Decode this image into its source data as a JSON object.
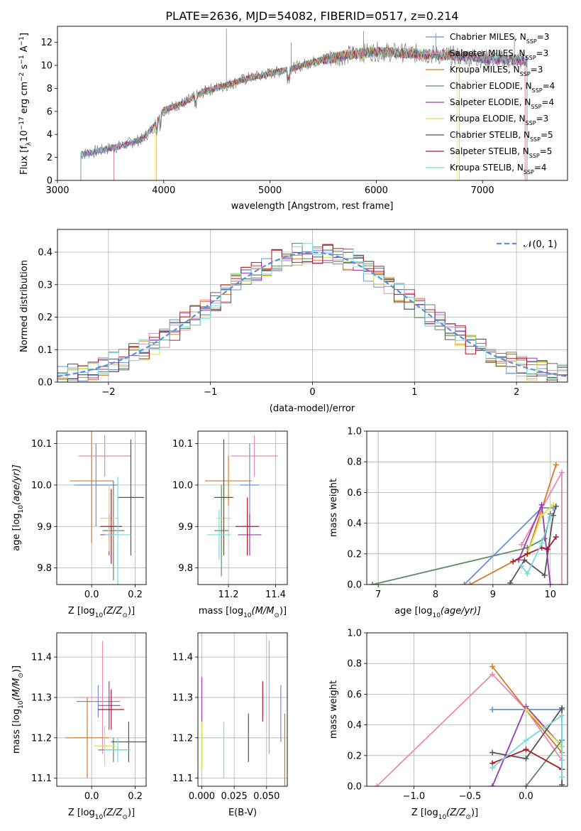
{
  "figure": {
    "title": "PLATE=2636, MJD=54082, FIBERID=0517, z=0.214"
  },
  "colors": {
    "chabrier_miles": "#6b8fd6",
    "salpeter_miles": "#e88ab6",
    "kroupa_miles": "#d57a2a",
    "chabrier_elodie": "#5f8a62",
    "salpeter_elodie": "#9a3ab0",
    "kroupa_elodie": "#d8e24a",
    "chabrier_stelib": "#555555",
    "salpeter_stelib": "#b0182a",
    "kroupa_stelib": "#7ad8de",
    "gaussian": "#5b8fd9"
  },
  "legend_spectrum": [
    {
      "label": "Chabrier MILES, N",
      "sub": "SSP",
      "tail": "=3",
      "color_key": "chabrier_miles"
    },
    {
      "label": "Salpeter MILES, N",
      "sub": "SSP",
      "tail": "=3",
      "color_key": "salpeter_miles"
    },
    {
      "label": "Kroupa MILES, N",
      "sub": "SSP",
      "tail": "=3",
      "color_key": "kroupa_miles"
    },
    {
      "label": "Chabrier ELODIE, N",
      "sub": "SSP",
      "tail": "=4",
      "color_key": "chabrier_elodie"
    },
    {
      "label": "Salpeter ELODIE, N",
      "sub": "SSP",
      "tail": "=4",
      "color_key": "salpeter_elodie"
    },
    {
      "label": "Kroupa ELODIE, N",
      "sub": "SSP",
      "tail": "=3",
      "color_key": "kroupa_elodie"
    },
    {
      "label": "Chabrier STELIB, N",
      "sub": "SSP",
      "tail": "=5",
      "color_key": "chabrier_stelib"
    },
    {
      "label": "Salpeter STELIB, N",
      "sub": "SSP",
      "tail": "=5",
      "color_key": "salpeter_stelib"
    },
    {
      "label": "Kroupa STELIB, N",
      "sub": "SSP",
      "tail": "=4",
      "color_key": "kroupa_stelib"
    }
  ],
  "legend_hist": {
    "label": "𝒩(0, 1)"
  },
  "chart_data": [
    {
      "id": "spectrum",
      "type": "line",
      "xlabel": "wavelength [Angstrom, rest frame]",
      "ylabel": "Flux [f",
      "ylabel_parts": [
        "Flux [f",
        "λ",
        "10",
        "−17",
        " erg cm",
        "−2",
        " s",
        "−1",
        " A",
        "−1",
        "]"
      ],
      "xlim": [
        3000,
        7800
      ],
      "ylim": [
        0,
        13.4
      ],
      "xticks": [
        3000,
        4000,
        5000,
        6000,
        7000
      ],
      "xtick_labels": [
        "3000",
        "4000",
        "5000",
        "6000",
        "7000"
      ],
      "yticks": [
        0,
        2,
        4,
        6,
        8,
        10,
        12
      ],
      "ytick_labels": [
        "0",
        "2",
        "4",
        "6",
        "8",
        "10",
        "12"
      ],
      "grid": false,
      "continuum": {
        "x": [
          3200,
          3400,
          3600,
          3800,
          3900,
          4000,
          4200,
          4400,
          4600,
          4800,
          5000,
          5200,
          5400,
          5600,
          5800,
          6000,
          6200,
          6400,
          6600,
          6800,
          7000,
          7200,
          7400
        ],
        "y": [
          2.2,
          2.6,
          3.0,
          3.6,
          4.6,
          6.1,
          6.8,
          7.8,
          8.3,
          8.9,
          9.3,
          9.7,
          10.3,
          10.7,
          11.0,
          11.2,
          11.1,
          11.0,
          10.9,
          10.8,
          10.6,
          10.5,
          10.4
        ]
      },
      "model_starts": [
        {
          "series": "data",
          "x_start": 3220
        },
        {
          "series": "salpeter_stelib",
          "x_start": 3530
        },
        {
          "series": "kroupa_miles",
          "x_start": 3930
        },
        {
          "series": "kroupa_elodie",
          "x_start": 3920
        }
      ],
      "model_ends": [
        {
          "series": "kroupa_miles",
          "x_end": 6780
        },
        {
          "series": "salpeter_stelib",
          "x_end": 7400
        },
        {
          "series": "kroupa_elodie",
          "x_end": 6760
        }
      ],
      "legend_position": "right"
    },
    {
      "id": "residual_hist",
      "type": "bar",
      "xlabel": "(data-model)/error",
      "ylabel": "Normed distribution",
      "xlim": [
        -2.5,
        2.5
      ],
      "ylim": [
        0,
        0.47
      ],
      "xticks": [
        -2,
        -1,
        0,
        1,
        2
      ],
      "xtick_labels": [
        "−2",
        "−1",
        "0",
        "1",
        "2"
      ],
      "yticks": [
        0.0,
        0.1,
        0.2,
        0.3,
        0.4
      ],
      "ytick_labels": [
        "0.0",
        "0.1",
        "0.2",
        "0.3",
        "0.4"
      ],
      "grid": true,
      "bin_width": 0.1,
      "gaussian": {
        "mean": 0,
        "sigma": 1
      },
      "legend_position": "top-right"
    },
    {
      "id": "age_vs_Z",
      "type": "scatter",
      "xlabel_parts": [
        "Z [log",
        "10",
        "(Z/Z",
        "⊙",
        ")]"
      ],
      "ylabel_parts": [
        "age  [log",
        "10",
        "(age/yr)]"
      ],
      "xlim": [
        -0.16,
        0.25
      ],
      "ylim": [
        9.76,
        10.13
      ],
      "xticks": [
        0.0,
        0.2
      ],
      "xtick_labels": [
        "0.0",
        "0.2"
      ],
      "yticks": [
        9.8,
        9.9,
        10.0,
        10.1
      ],
      "ytick_labels": [
        "9.8",
        "9.9",
        "10.0",
        "10.1"
      ],
      "grid": true,
      "points": [
        {
          "s": "chabrier_miles",
          "x": 0.02,
          "xerr": 0.1,
          "y": 10.0,
          "yerr": 0.1
        },
        {
          "s": "salpeter_miles",
          "x": 0.06,
          "xerr": 0.12,
          "y": 10.07,
          "yerr": 0.05
        },
        {
          "s": "kroupa_miles",
          "x": 0.0,
          "xerr": 0.1,
          "y": 10.01,
          "yerr": 0.15
        },
        {
          "s": "chabrier_elodie",
          "x": 0.1,
          "xerr": 0.05,
          "y": 9.89,
          "yerr": 0.12
        },
        {
          "s": "salpeter_elodie",
          "x": 0.08,
          "xerr": 0.04,
          "y": 9.88,
          "yerr": 0.05
        },
        {
          "s": "kroupa_elodie",
          "x": 0.08,
          "xerr": 0.04,
          "y": 9.92,
          "yerr": 0.08
        },
        {
          "s": "chabrier_stelib",
          "x": 0.18,
          "xerr": 0.06,
          "y": 9.97,
          "yerr": 0.14
        },
        {
          "s": "salpeter_stelib",
          "x": 0.09,
          "xerr": 0.05,
          "y": 9.9,
          "yerr": 0.09
        },
        {
          "s": "kroupa_stelib",
          "x": 0.12,
          "xerr": 0.06,
          "y": 9.88,
          "yerr": 0.14
        }
      ]
    },
    {
      "id": "age_vs_mass",
      "type": "scatter",
      "xlabel_parts": [
        "mass [log",
        "10",
        "(M/M",
        "⊙",
        ")]"
      ],
      "ylabel_parts": [],
      "xlim": [
        11.07,
        11.45
      ],
      "ylim": [
        9.76,
        10.13
      ],
      "xticks": [
        11.2,
        11.4
      ],
      "xtick_labels": [
        "11.2",
        "11.4"
      ],
      "yticks": [
        9.8,
        9.9,
        10.0,
        10.1
      ],
      "ytick_labels": [
        "9.8",
        "9.9",
        "10.0",
        "10.1"
      ],
      "grid": true,
      "points": [
        {
          "s": "chabrier_miles",
          "x": 11.29,
          "xerr": 0.04,
          "y": 10.0,
          "yerr": 0.1
        },
        {
          "s": "salpeter_miles",
          "x": 11.31,
          "xerr": 0.1,
          "y": 10.07,
          "yerr": 0.05
        },
        {
          "s": "kroupa_miles",
          "x": 11.2,
          "xerr": 0.1,
          "y": 10.01,
          "yerr": 0.06
        },
        {
          "s": "chabrier_elodie",
          "x": 11.17,
          "xerr": 0.03,
          "y": 9.89,
          "yerr": 0.11
        },
        {
          "s": "salpeter_elodie",
          "x": 11.29,
          "xerr": 0.05,
          "y": 9.88,
          "yerr": 0.05
        },
        {
          "s": "kroupa_elodie",
          "x": 11.18,
          "xerr": 0.03,
          "y": 9.92,
          "yerr": 0.08
        },
        {
          "s": "chabrier_stelib",
          "x": 11.18,
          "xerr": 0.04,
          "y": 9.97,
          "yerr": 0.14
        },
        {
          "s": "salpeter_stelib",
          "x": 11.28,
          "xerr": 0.05,
          "y": 9.9,
          "yerr": 0.07
        },
        {
          "s": "kroupa_stelib",
          "x": 11.16,
          "xerr": 0.05,
          "y": 9.88,
          "yerr": 0.06
        }
      ]
    },
    {
      "id": "weight_vs_age",
      "type": "line",
      "xlabel_parts": [
        "age  [log",
        "10",
        "(age/yr)]"
      ],
      "ylabel": "mass weight",
      "xlim": [
        6.8,
        10.3
      ],
      "ylim": [
        0,
        1.0
      ],
      "xticks": [
        7,
        8,
        9,
        10
      ],
      "xtick_labels": [
        "7",
        "8",
        "9",
        "10"
      ],
      "yticks": [
        0.0,
        0.2,
        0.4,
        0.6,
        0.8,
        1.0
      ],
      "ytick_labels": [
        "0.0",
        "0.2",
        "0.4",
        "0.6",
        "0.8",
        "1.0"
      ],
      "grid": true,
      "series": [
        {
          "s": "chabrier_elodie",
          "x": [
            6.9,
            9.6,
            9.9,
            10.0
          ],
          "y": [
            0.0,
            0.24,
            0.3,
            0.46
          ]
        },
        {
          "s": "chabrier_miles",
          "x": [
            8.5,
            9.85,
            10.05
          ],
          "y": [
            0.0,
            0.5,
            0.5
          ]
        },
        {
          "s": "kroupa_miles",
          "x": [
            8.6,
            9.6,
            10.1
          ],
          "y": [
            0.0,
            0.2,
            0.78
          ]
        },
        {
          "s": "salpeter_miles",
          "x": [
            9.5,
            10.2,
            10.2
          ],
          "y": [
            0.26,
            0.73,
            0.0
          ]
        },
        {
          "s": "salpeter_elodie",
          "x": [
            9.45,
            9.85,
            10.0
          ],
          "y": [
            0.16,
            0.52,
            0.0
          ]
        },
        {
          "s": "kroupa_elodie",
          "x": [
            9.6,
            9.85,
            10.05
          ],
          "y": [
            0.2,
            0.45,
            0.52
          ]
        },
        {
          "s": "chabrier_stelib",
          "x": [
            9.3,
            9.55,
            9.9,
            10.05,
            10.1
          ],
          "y": [
            0.01,
            0.16,
            0.06,
            0.45,
            0.51
          ]
        },
        {
          "s": "salpeter_stelib",
          "x": [
            9.35,
            9.6,
            9.85,
            9.95,
            10.1
          ],
          "y": [
            0.15,
            0.2,
            0.24,
            0.23,
            0.31
          ]
        },
        {
          "s": "kroupa_stelib",
          "x": [
            9.5,
            9.6,
            9.85,
            10.0
          ],
          "y": [
            0.12,
            0.07,
            0.27,
            0.44
          ]
        }
      ]
    },
    {
      "id": "mass_vs_Z",
      "type": "scatter",
      "xlabel_parts": [
        "Z [log",
        "10",
        "(Z/Z",
        "⊙",
        ")]"
      ],
      "ylabel_parts": [
        "mass [log",
        "10",
        "(M/M",
        "⊙",
        ")]"
      ],
      "xlim": [
        -0.16,
        0.25
      ],
      "ylim": [
        11.08,
        11.46
      ],
      "xticks": [
        0.0,
        0.2
      ],
      "xtick_labels": [
        "0.0",
        "0.2"
      ],
      "yticks": [
        11.1,
        11.2,
        11.3,
        11.4
      ],
      "ytick_labels": [
        "11.1",
        "11.2",
        "11.3",
        "11.4"
      ],
      "grid": true,
      "points": [
        {
          "s": "chabrier_miles",
          "x": 0.03,
          "xerr": 0.1,
          "y": 11.29,
          "yerr": 0.04
        },
        {
          "s": "salpeter_miles",
          "x": 0.05,
          "xerr": 0.13,
          "y": 11.3,
          "yerr": 0.14
        },
        {
          "s": "kroupa_miles",
          "x": -0.02,
          "xerr": 0.1,
          "y": 11.2,
          "yerr": 0.1
        },
        {
          "s": "chabrier_elodie",
          "x": 0.1,
          "xerr": 0.07,
          "y": 11.17,
          "yerr": 0.03
        },
        {
          "s": "salpeter_elodie",
          "x": 0.08,
          "xerr": 0.05,
          "y": 11.28,
          "yerr": 0.06
        },
        {
          "s": "kroupa_elodie",
          "x": 0.06,
          "xerr": 0.05,
          "y": 11.18,
          "yerr": 0.05
        },
        {
          "s": "chabrier_stelib",
          "x": 0.17,
          "xerr": 0.08,
          "y": 11.19,
          "yerr": 0.05
        },
        {
          "s": "salpeter_stelib",
          "x": 0.09,
          "xerr": 0.06,
          "y": 11.27,
          "yerr": 0.05
        },
        {
          "s": "kroupa_stelib",
          "x": 0.12,
          "xerr": 0.06,
          "y": 11.17,
          "yerr": 0.03
        }
      ]
    },
    {
      "id": "mass_vs_ebv",
      "type": "scatter",
      "xlabel": "E(B-V)",
      "xlim": [
        -0.003,
        0.066
      ],
      "ylim": [
        11.08,
        11.46
      ],
      "xticks": [
        0.0,
        0.025,
        0.05
      ],
      "xtick_labels": [
        "0.000",
        "0.025",
        "0.050"
      ],
      "yticks": [
        11.1,
        11.2,
        11.3,
        11.4
      ],
      "ytick_labels": [
        "11.1",
        "11.2",
        "11.3",
        "11.4"
      ],
      "grid": true,
      "points": [
        {
          "s": "chabrier_miles",
          "x": 0.061,
          "xerr": 0,
          "y": 11.26,
          "yerr": 0.07
        },
        {
          "s": "salpeter_miles",
          "x": 0.052,
          "xerr": 0,
          "y": 11.3,
          "yerr": 0.14
        },
        {
          "s": "kroupa_miles",
          "x": 0.064,
          "xerr": 0,
          "y": 11.17,
          "yerr": 0.09
        },
        {
          "s": "chabrier_elodie",
          "x": 0.0,
          "xerr": 0,
          "y": 11.17,
          "yerr": 0.05
        },
        {
          "s": "salpeter_elodie",
          "x": 0.0,
          "xerr": 0,
          "y": 11.29,
          "yerr": 0.06
        },
        {
          "s": "kroupa_elodie",
          "x": 0.0,
          "xerr": 0,
          "y": 11.18,
          "yerr": 0.06
        },
        {
          "s": "chabrier_stelib",
          "x": 0.036,
          "xerr": 0,
          "y": 11.2,
          "yerr": 0.06
        },
        {
          "s": "salpeter_stelib",
          "x": 0.047,
          "xerr": 0,
          "y": 11.29,
          "yerr": 0.05
        },
        {
          "s": "kroupa_stelib",
          "x": 0.017,
          "xerr": 0,
          "y": 11.17,
          "yerr": 0.07
        }
      ]
    },
    {
      "id": "weight_vs_Z",
      "type": "line",
      "xlabel_parts": [
        "Z [log",
        "10",
        "(Z/Z",
        "⊙",
        ")]"
      ],
      "ylabel": "mass weight",
      "xlim": [
        -1.42,
        0.37
      ],
      "ylim": [
        0,
        1.0
      ],
      "xticks": [
        -1.0,
        -0.5,
        0.0
      ],
      "xtick_labels": [
        "−1.0",
        "−0.5",
        "0.0"
      ],
      "yticks": [
        0.0,
        0.2,
        0.4,
        0.6,
        0.8,
        1.0
      ],
      "ytick_labels": [
        "0.0",
        "0.2",
        "0.4",
        "0.6",
        "0.8",
        "1.0"
      ],
      "grid": true,
      "series": [
        {
          "s": "salpeter_miles",
          "x": [
            -1.33,
            -0.3,
            0.0,
            0.32
          ],
          "y": [
            0.0,
            0.73,
            0.5,
            0.17
          ]
        },
        {
          "s": "kroupa_miles",
          "x": [
            -0.3,
            0.0,
            0.32
          ],
          "y": [
            0.78,
            0.5,
            0.22
          ]
        },
        {
          "s": "chabrier_miles",
          "x": [
            -0.3,
            0.32
          ],
          "y": [
            0.5,
            0.5
          ]
        },
        {
          "s": "salpeter_elodie",
          "x": [
            -0.3,
            0.0,
            0.32
          ],
          "y": [
            0.0,
            0.52,
            0.26
          ]
        },
        {
          "s": "kroupa_elodie",
          "x": [
            0.0,
            0.32
          ],
          "y": [
            0.5,
            0.26
          ]
        },
        {
          "s": "chabrier_elodie",
          "x": [
            0.0,
            0.32
          ],
          "y": [
            0.0,
            0.3
          ]
        },
        {
          "s": "chabrier_stelib",
          "x": [
            -0.3,
            0.0,
            0.32,
            0.32
          ],
          "y": [
            0.22,
            0.18,
            0.51,
            0.01
          ]
        },
        {
          "s": "salpeter_stelib",
          "x": [
            -0.3,
            0.0,
            0.32
          ],
          "y": [
            0.15,
            0.24,
            0.11
          ]
        },
        {
          "s": "kroupa_stelib",
          "x": [
            -0.3,
            0.0,
            0.32,
            0.32
          ],
          "y": [
            0.12,
            0.3,
            0.46,
            0.06
          ]
        }
      ]
    }
  ]
}
